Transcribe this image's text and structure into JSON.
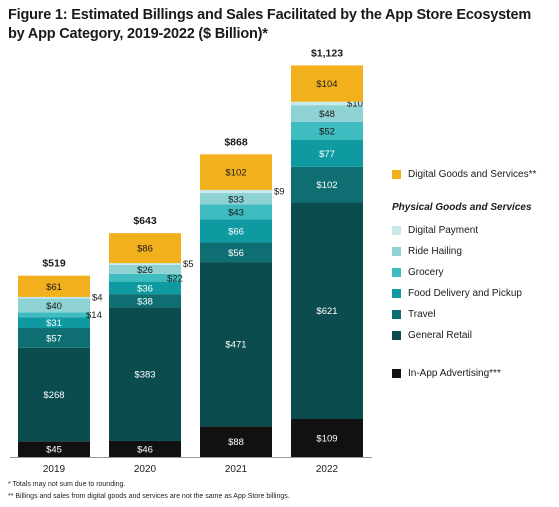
{
  "title": "Figure 1: Estimated Billings and Sales Facilitated by the App Store Ecosystem by App Category, 2019-2022 ($ Billion)*",
  "legend_subtitle": "Physical Goods and Services",
  "footnotes": [
    "*   Totals may not sum due to rounding.",
    "**  Billings and sales from digital goods and services are not the same as App Store billings."
  ],
  "chart_data": {
    "type": "bar",
    "stacked": true,
    "categories": [
      "2019",
      "2020",
      "2021",
      "2022"
    ],
    "totals": [
      "$519",
      "$643",
      "$868",
      "$1,123"
    ],
    "series": [
      {
        "name": "In-App Advertising***",
        "color": "#111111",
        "values": [
          45,
          46,
          88,
          109
        ],
        "labels": [
          "$45",
          "$46",
          "$88",
          "$109"
        ]
      },
      {
        "name": "General Retail",
        "color": "#0b4d4f",
        "values": [
          268,
          383,
          471,
          621
        ],
        "labels": [
          "$268",
          "$383",
          "$471",
          "$621"
        ]
      },
      {
        "name": "Travel",
        "color": "#0f6e72",
        "values": [
          57,
          38,
          56,
          102
        ],
        "labels": [
          "$57",
          "$38",
          "$56",
          "$102"
        ]
      },
      {
        "name": "Food Delivery and Pickup",
        "color": "#0e9aa0",
        "values": [
          31,
          36,
          66,
          77
        ],
        "labels": [
          "$31",
          "$36",
          "$66",
          "$77"
        ]
      },
      {
        "name": "Grocery",
        "color": "#3fbcbf",
        "values": [
          14,
          22,
          43,
          52
        ],
        "labels": [
          "$14",
          "$22",
          "$43",
          "$52"
        ]
      },
      {
        "name": "Ride Hailing",
        "color": "#8fd2d4",
        "values": [
          40,
          26,
          33,
          48
        ],
        "labels": [
          "$40",
          "$26",
          "$33",
          "$48"
        ]
      },
      {
        "name": "Digital Payment",
        "color": "#c8e9ea",
        "values": [
          4,
          5,
          9,
          10
        ],
        "labels": [
          "$4",
          "$5",
          "$9",
          "$10"
        ]
      },
      {
        "name": "Digital Goods and Services**",
        "color": "#f3b01d",
        "values": [
          61,
          86,
          102,
          104
        ],
        "labels": [
          "$61",
          "$86",
          "$102",
          "$104"
        ]
      }
    ],
    "legend": {
      "top": [
        "Digital Goods and Services**"
      ],
      "physical": [
        "Digital Payment",
        "Ride Hailing",
        "Grocery",
        "Food Delivery and Pickup",
        "Travel",
        "General Retail"
      ],
      "bottom": [
        "In-App Advertising***"
      ],
      "placement": "right"
    }
  }
}
